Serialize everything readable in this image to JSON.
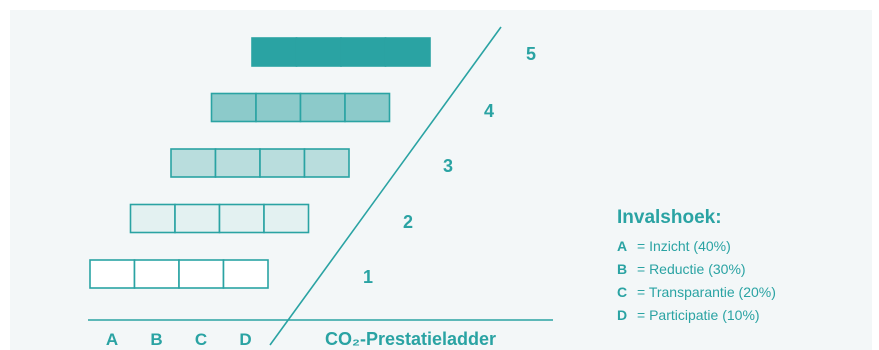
{
  "diagram": {
    "levels": [
      {
        "label": "1",
        "fill": "#ffffff"
      },
      {
        "label": "2",
        "fill": "#e3f1f1"
      },
      {
        "label": "3",
        "fill": "#b9dddd"
      },
      {
        "label": "4",
        "fill": "#8ccaca"
      },
      {
        "label": "5",
        "fill": "#2aa3a3"
      }
    ],
    "columns": [
      "A",
      "B",
      "C",
      "D"
    ],
    "axis_title": "CO₂-Prestatieladder",
    "accent_color": "#2aa3a3"
  },
  "legend": {
    "title": "Invalshoek:",
    "items": [
      {
        "key": "A",
        "text": "= Inzicht (40%)"
      },
      {
        "key": "B",
        "text": "= Reductie (30%)"
      },
      {
        "key": "C",
        "text": "= Transparantie (20%)"
      },
      {
        "key": "D",
        "text": "= Participatie (10%)"
      }
    ]
  }
}
